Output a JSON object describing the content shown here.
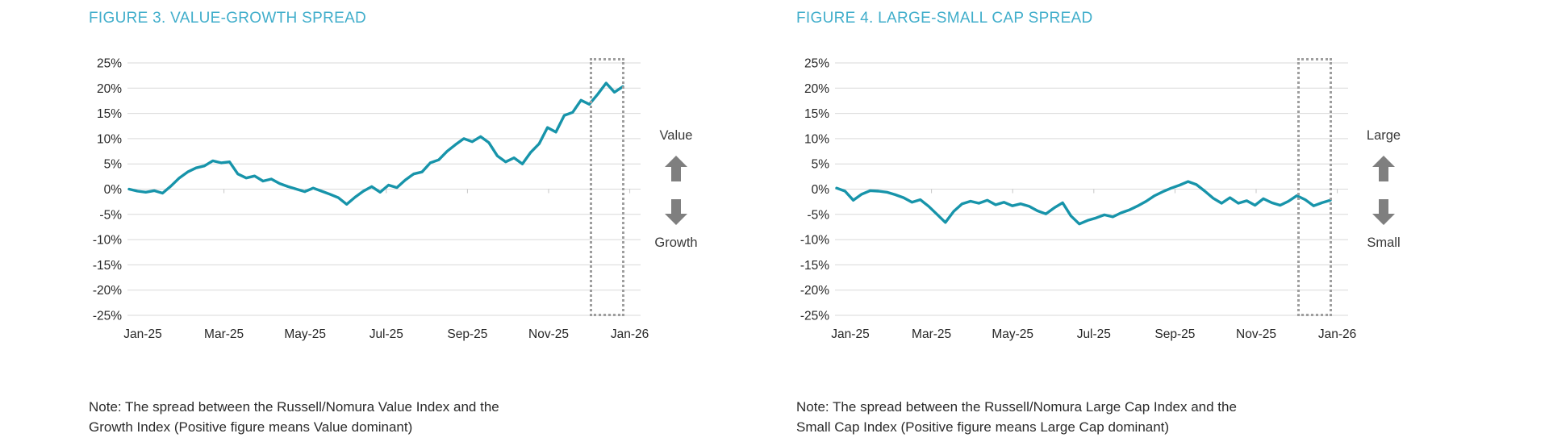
{
  "colors": {
    "title": "#41AECB",
    "line": "#1794AA",
    "gridline": "#D9D9D9",
    "axis_text": "#262626",
    "note_text": "#2B2B2B",
    "arrow_gray": "#7F7F7F",
    "highlight_box_gray": "#9E9E9E"
  },
  "figures": [
    {
      "title": "FIGURE 3. VALUE-GROWTH SPREAD",
      "note": "Note: The spread between the Russell/Nomura Value Index and the\nGrowth Index (Positive figure means Value dominant)",
      "annotation": {
        "top_label": "Value",
        "bottom_label": "Growth"
      }
    },
    {
      "title": "FIGURE 4. LARGE-SMALL CAP SPREAD",
      "note": "Note: The spread between the Russell/Nomura Large Cap Index and the\nSmall Cap Index (Positive figure means Large Cap dominant)",
      "annotation": {
        "top_label": "Large",
        "bottom_label": "Small"
      }
    }
  ],
  "chart_data": [
    {
      "type": "line",
      "title": "FIGURE 3. VALUE-GROWTH SPREAD",
      "xlabel": "",
      "ylabel": "",
      "ylim": [
        -25,
        25
      ],
      "grid": true,
      "legend_position": "none",
      "x_tick_labels": [
        "Jan-25",
        "Mar-25",
        "May-25",
        "Jul-25",
        "Sep-25",
        "Nov-25",
        "Jan-26"
      ],
      "y_tick_labels": [
        "25%",
        "20%",
        "15%",
        "10%",
        "5%",
        "0%",
        "-5%",
        "-10%",
        "-15%",
        "-20%",
        "-25%"
      ],
      "highlight_recent_period": true,
      "series": [
        {
          "name": "Value-Growth spread (%)",
          "cadence": "weekly, Jan-25 to Jan-26 (values estimated from plot)",
          "values": [
            0.0,
            -0.4,
            -0.6,
            -0.3,
            -0.8,
            0.6,
            2.2,
            3.4,
            4.2,
            4.6,
            5.6,
            5.2,
            5.4,
            3.0,
            2.2,
            2.6,
            1.6,
            2.0,
            1.1,
            0.5,
            0.0,
            -0.5,
            0.2,
            -0.4,
            -1.0,
            -1.7,
            -3.0,
            -1.6,
            -0.4,
            0.5,
            -0.6,
            0.8,
            0.3,
            1.8,
            3.0,
            3.4,
            5.2,
            5.8,
            7.5,
            8.8,
            10.0,
            9.4,
            10.4,
            9.2,
            6.6,
            5.4,
            6.2,
            5.0,
            7.3,
            9.0,
            12.2,
            11.3,
            14.6,
            15.2,
            17.6,
            16.8,
            18.8,
            21.0,
            19.2,
            20.3
          ]
        }
      ],
      "annotations": [
        "Value (up arrow)",
        "Growth (down arrow)"
      ]
    },
    {
      "type": "line",
      "title": "FIGURE 4. LARGE-SMALL CAP SPREAD",
      "xlabel": "",
      "ylabel": "",
      "ylim": [
        -25,
        25
      ],
      "grid": true,
      "legend_position": "none",
      "x_tick_labels": [
        "Jan-25",
        "Mar-25",
        "May-25",
        "Jul-25",
        "Sep-25",
        "Nov-25",
        "Jan-26"
      ],
      "y_tick_labels": [
        "25%",
        "20%",
        "15%",
        "10%",
        "5%",
        "0%",
        "-5%",
        "-10%",
        "-15%",
        "-20%",
        "-25%"
      ],
      "highlight_recent_period": true,
      "series": [
        {
          "name": "Large-Small cap spread (%)",
          "cadence": "weekly, Jan-25 to Jan-26 (values estimated from plot)",
          "values": [
            0.2,
            -0.4,
            -2.2,
            -1.0,
            -0.3,
            -0.4,
            -0.6,
            -1.1,
            -1.7,
            -2.6,
            -2.1,
            -3.4,
            -5.0,
            -6.6,
            -4.4,
            -2.9,
            -2.4,
            -2.8,
            -2.2,
            -3.1,
            -2.6,
            -3.3,
            -2.9,
            -3.4,
            -4.3,
            -4.9,
            -3.7,
            -2.7,
            -5.3,
            -6.9,
            -6.2,
            -5.7,
            -5.1,
            -5.5,
            -4.7,
            -4.1,
            -3.3,
            -2.4,
            -1.3,
            -0.5,
            0.2,
            0.8,
            1.5,
            0.9,
            -0.4,
            -1.8,
            -2.8,
            -1.7,
            -2.8,
            -2.3,
            -3.2,
            -1.9,
            -2.7,
            -3.2,
            -2.4,
            -1.3,
            -2.1,
            -3.3,
            -2.7,
            -2.2
          ]
        }
      ],
      "annotations": [
        "Large (up arrow)",
        "Small (down arrow)"
      ]
    }
  ]
}
